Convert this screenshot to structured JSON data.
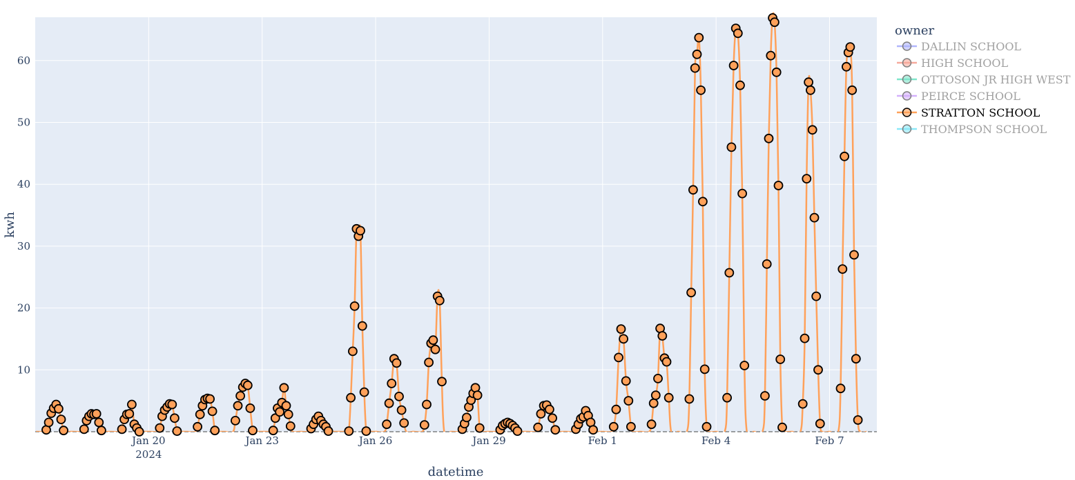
{
  "chart_data": {
    "type": "line",
    "xlabel": "datetime",
    "ylabel": "kwh",
    "x_range": [
      "2024-01-17T00:00",
      "2024-02-08T06:00"
    ],
    "ylim": [
      0,
      67
    ],
    "x_ticks": [
      {
        "date": "2024-01-20",
        "label": "Jan 20",
        "sub": "2024"
      },
      {
        "date": "2024-01-23",
        "label": "Jan 23",
        "sub": ""
      },
      {
        "date": "2024-01-26",
        "label": "Jan 26",
        "sub": ""
      },
      {
        "date": "2024-01-29",
        "label": "Jan 29",
        "sub": ""
      },
      {
        "date": "2024-02-01",
        "label": "Feb 1",
        "sub": ""
      },
      {
        "date": "2024-02-04",
        "label": "Feb 4",
        "sub": ""
      },
      {
        "date": "2024-02-07",
        "label": "Feb 7",
        "sub": ""
      }
    ],
    "y_ticks": [
      10,
      20,
      30,
      40,
      50,
      60
    ],
    "grid": true,
    "legend": {
      "title": "owner",
      "position": "right",
      "items": [
        {
          "name": "DALLIN SCHOOL",
          "color": "#636efa",
          "visible": false
        },
        {
          "name": "HIGH SCHOOL",
          "color": "#ef553b",
          "visible": false
        },
        {
          "name": "OTTOSON JR HIGH WEST",
          "color": "#00cc96",
          "visible": false
        },
        {
          "name": "PEIRCE SCHOOL",
          "color": "#ab63fa",
          "visible": false
        },
        {
          "name": "STRATTON SCHOOL",
          "color": "#ffa15a",
          "visible": true
        },
        {
          "name": "THOMPSON SCHOOL",
          "color": "#19d3f3",
          "visible": false
        }
      ]
    },
    "series": [
      {
        "name": "STRATTON SCHOOL",
        "color": "#ffa15a",
        "days": [
          {
            "date": "2024-01-17",
            "values": [
              0.3,
              1.5,
              3.0,
              3.8,
              4.4,
              3.7,
              2.0,
              0.2
            ]
          },
          {
            "date": "2024-01-18",
            "values": [
              0.4,
              1.8,
              2.5,
              2.9,
              2.8,
              2.9,
              1.5,
              0.2
            ]
          },
          {
            "date": "2024-01-19",
            "values": [
              0.4,
              2.0,
              2.8,
              2.9,
              4.4,
              1.2,
              0.6,
              0.0
            ]
          },
          {
            "date": "2024-01-20",
            "values": [
              0.6,
              2.5,
              3.5,
              4.0,
              4.5,
              4.4,
              2.2,
              0.1
            ]
          },
          {
            "date": "2024-01-21",
            "values": [
              0.8,
              2.8,
              4.2,
              5.2,
              5.4,
              5.3,
              3.3,
              0.2
            ]
          },
          {
            "date": "2024-01-22",
            "values": [
              1.8,
              4.2,
              5.8,
              7.2,
              7.8,
              7.5,
              3.8,
              0.2
            ]
          },
          {
            "date": "2024-01-23",
            "values": [
              0.2,
              2.2,
              3.8,
              3.2,
              4.7,
              7.1,
              4.2,
              2.8,
              0.9
            ]
          },
          {
            "date": "2024-01-24",
            "values": [
              0.5,
              1.2,
              2.0,
              2.5,
              1.8,
              1.2,
              0.8,
              0.1
            ]
          },
          {
            "date": "2024-01-25",
            "values": [
              0.1,
              5.5,
              13.0,
              20.3,
              32.8,
              31.6,
              32.5,
              17.1,
              6.4,
              0.1
            ]
          },
          {
            "date": "2024-01-26",
            "values": [
              1.2,
              4.6,
              7.8,
              11.8,
              11.1,
              5.7,
              3.5,
              1.4
            ]
          },
          {
            "date": "2024-01-27",
            "values": [
              1.1,
              4.4,
              11.2,
              14.3,
              14.8,
              13.3,
              21.9,
              21.2,
              8.1
            ]
          },
          {
            "date": "2024-01-28",
            "values": [
              0.4,
              1.3,
              2.3,
              4.0,
              5.1,
              6.2,
              7.1,
              5.9,
              0.6
            ]
          },
          {
            "date": "2024-01-29",
            "values": [
              0.3,
              1.0,
              1.3,
              1.5,
              1.3,
              1.0,
              0.6,
              0.1
            ]
          },
          {
            "date": "2024-01-30",
            "values": [
              0.7,
              2.9,
              4.2,
              4.3,
              3.6,
              2.2,
              0.3
            ]
          },
          {
            "date": "2024-01-31",
            "values": [
              0.4,
              1.2,
              2.1,
              2.4,
              3.4,
              2.6,
              1.5,
              0.3
            ]
          },
          {
            "date": "2024-02-01",
            "values": [
              0.8,
              3.6,
              12.0,
              16.6,
              15.0,
              8.2,
              5.0,
              0.8
            ]
          },
          {
            "date": "2024-02-02",
            "values": [
              1.2,
              4.6,
              5.9,
              8.6,
              16.7,
              15.5,
              11.9,
              11.3,
              5.5
            ]
          },
          {
            "date": "2024-02-03",
            "values": [
              5.3,
              22.5,
              39.1,
              58.8,
              61.0,
              63.7,
              55.2,
              37.2,
              10.1,
              0.8
            ]
          },
          {
            "date": "2024-02-04",
            "values": [
              5.5,
              25.7,
              46.0,
              59.2,
              65.2,
              64.4,
              56.0,
              38.5,
              10.7
            ]
          },
          {
            "date": "2024-02-05",
            "values": [
              5.8,
              27.1,
              47.4,
              60.8,
              67.2,
              66.2,
              58.1,
              39.8,
              11.7,
              0.7
            ]
          },
          {
            "date": "2024-02-06",
            "values": [
              4.5,
              15.1,
              40.9,
              56.5,
              55.2,
              48.8,
              34.6,
              21.9,
              10.0,
              1.3
            ]
          },
          {
            "date": "2024-02-07",
            "values": [
              7.0,
              26.3,
              44.5,
              59.0,
              61.3,
              62.2,
              55.2,
              28.6,
              11.8,
              1.9
            ]
          }
        ]
      }
    ]
  }
}
